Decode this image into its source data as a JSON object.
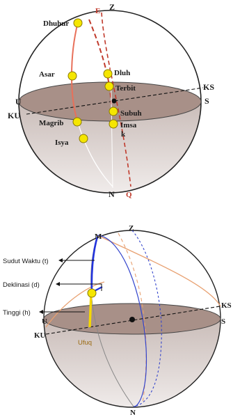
{
  "top": {
    "zenith": "Z",
    "e_mark": "E",
    "u": "U",
    "ku": "KU",
    "ks": "KS",
    "s": "S",
    "n": "N",
    "q": "Q",
    "prayers": {
      "dhuhur": "Dhuhur",
      "asar": "Asar",
      "dluh": "Dluh",
      "terbit": "Terbit",
      "magrib": "Magrib",
      "subuh": "Subuh",
      "imsak_1": "Imsa",
      "imsak_2": "k",
      "isya": "Isya"
    },
    "colors": {
      "sun": "#f5e600",
      "sun_stroke": "#8a7a00",
      "path": "#e8705a",
      "horizon": "#a89088"
    }
  },
  "bottom": {
    "m": "M",
    "z": "Z",
    "u": "U",
    "ku": "KU",
    "ks": "KS",
    "s": "S",
    "n": "N",
    "ufuq": "Ufuq",
    "annotations": {
      "sudut_waktu": "Sudut Waktu (t)",
      "deklinasi": "Deklinasi (d)",
      "tinggi": "Tinggi (h)"
    },
    "colors": {
      "sun": "#f5e600",
      "hour_circle": "#3344cc",
      "path": "#e8a070",
      "horizon": "#a89088"
    }
  }
}
